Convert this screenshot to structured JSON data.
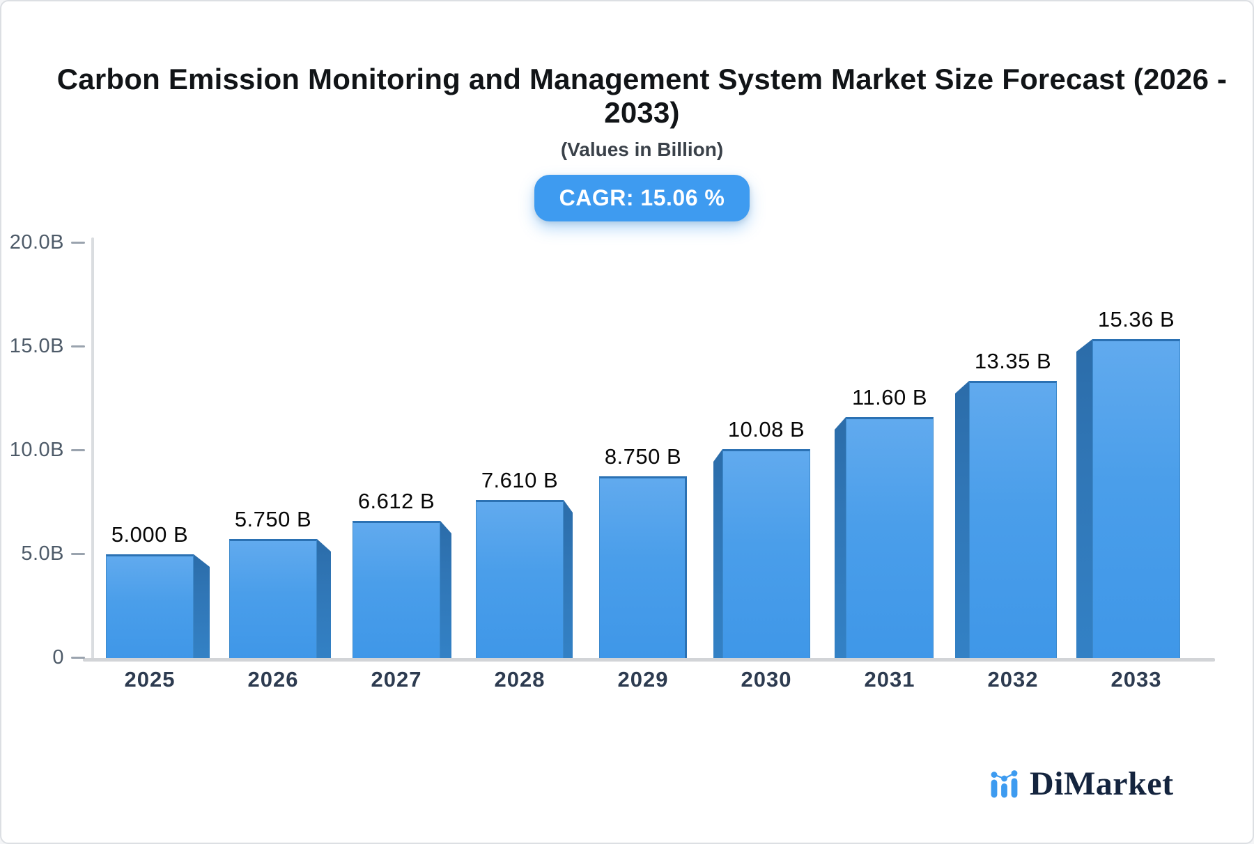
{
  "header": {
    "title_lines": [
      "Carbon Emission Monitoring and Management System Market Size Forecast (2026 -",
      "2033)"
    ],
    "subtitle": "(Values in Billion)",
    "cagr_label": "CAGR: 15.06 %",
    "badge_color": "#3e9bf0"
  },
  "chart_data": {
    "type": "bar",
    "title": "Carbon Emission Monitoring and Management System Market Size Forecast (2026 - 2033)",
    "subtitle": "(Values in Billion)",
    "cagr_percent": 15.06,
    "unit": "Billion",
    "categories": [
      "2025",
      "2026",
      "2027",
      "2028",
      "2029",
      "2030",
      "2031",
      "2032",
      "2033"
    ],
    "values": [
      5.0,
      5.75,
      6.612,
      7.61,
      8.75,
      10.08,
      11.6,
      13.35,
      15.36
    ],
    "value_labels": [
      "5.000 B",
      "5.750 B",
      "6.612 B",
      "7.610 B",
      "8.750 B",
      "10.08 B",
      "11.60 B",
      "13.35 B",
      "15.36 B"
    ],
    "ylim": [
      0,
      20
    ],
    "yticks": [
      {
        "value": 0,
        "label": "0"
      },
      {
        "value": 5,
        "label": "5.0B"
      },
      {
        "value": 10,
        "label": "10.0B"
      },
      {
        "value": 15,
        "label": "15.0B"
      },
      {
        "value": 20,
        "label": "20.0B"
      }
    ],
    "grid": false,
    "legend": "none",
    "bar_color_top": "#61aaee",
    "bar_color_bottom": "#3f97e8",
    "bar_side_color": "#2e74b2"
  },
  "footer": {
    "logo_text": "DiMarket",
    "logo_icon": "bar-chart-icon",
    "logo_icon_color": "#3d9bf0",
    "logo_text_color": "#14243e"
  }
}
